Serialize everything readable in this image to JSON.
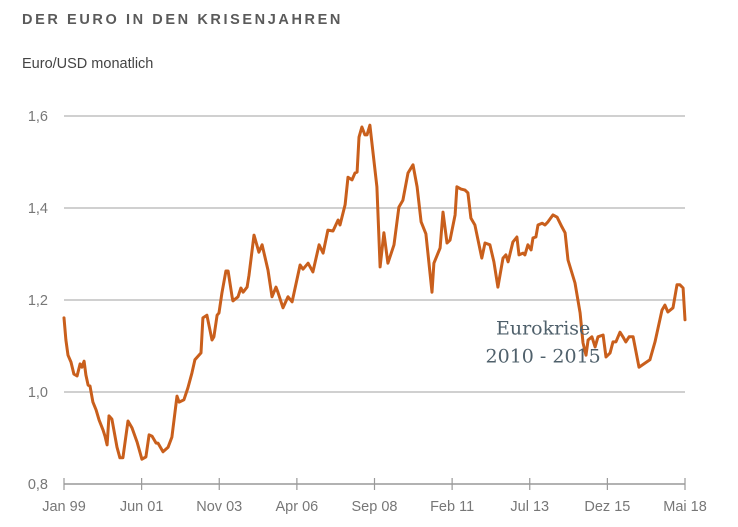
{
  "title": "DER EURO IN DEN KRISENJAHREN",
  "subtitle": "Euro/USD monatlich",
  "colors": {
    "line": "#c95f1c",
    "grid": "#b5b5b5",
    "axis": "#999999",
    "text": "#777777",
    "annotation": "#4f606b"
  },
  "chart_data": {
    "type": "line",
    "title": "DER EURO IN DEN KRISENJAHREN",
    "ylabel": "Euro/USD monatlich",
    "xlabel": "",
    "x_unit": "months since Jan 1999",
    "xlim": [
      0,
      232
    ],
    "ylim": [
      0.8,
      1.6
    ],
    "yticks": [
      0.8,
      1.0,
      1.2,
      1.4,
      1.6
    ],
    "ytick_labels": [
      "0,8",
      "1,0",
      "1,2",
      "1,4",
      "1,6"
    ],
    "xticks": [
      0,
      29,
      58,
      87,
      116,
      145,
      174,
      203,
      232
    ],
    "xtick_labels": [
      "Jan 99",
      "Jun 01",
      "Nov 03",
      "Apr 06",
      "Sep 08",
      "Feb 11",
      "Jul 13",
      "Dez 15",
      "Mai 18"
    ],
    "grid": true,
    "annotations": [
      {
        "line1": "Eurokrise",
        "line2": "2010 - 2015",
        "x": 179,
        "y": 1.06
      }
    ],
    "series": [
      {
        "name": "EUR/USD",
        "points": [
          [
            0,
            1.161
          ],
          [
            0.7,
            1.113
          ],
          [
            1.5,
            1.08
          ],
          [
            2.6,
            1.065
          ],
          [
            3.7,
            1.039
          ],
          [
            4.9,
            1.035
          ],
          [
            6.0,
            1.061
          ],
          [
            6.7,
            1.054
          ],
          [
            7.5,
            1.067
          ],
          [
            8.2,
            1.037
          ],
          [
            9.0,
            1.015
          ],
          [
            9.7,
            1.013
          ],
          [
            10.8,
            0.978
          ],
          [
            12.0,
            0.961
          ],
          [
            13.1,
            0.939
          ],
          [
            14.6,
            0.917
          ],
          [
            15.3,
            0.904
          ],
          [
            16.1,
            0.885
          ],
          [
            16.8,
            0.948
          ],
          [
            17.9,
            0.941
          ],
          [
            19.8,
            0.88
          ],
          [
            20.9,
            0.857
          ],
          [
            22.0,
            0.857
          ],
          [
            23.9,
            0.937
          ],
          [
            25.4,
            0.922
          ],
          [
            27.3,
            0.891
          ],
          [
            29.1,
            0.854
          ],
          [
            30.6,
            0.859
          ],
          [
            31.8,
            0.907
          ],
          [
            32.9,
            0.904
          ],
          [
            34.4,
            0.889
          ],
          [
            35.1,
            0.889
          ],
          [
            37.0,
            0.87
          ],
          [
            38.9,
            0.88
          ],
          [
            40.3,
            0.902
          ],
          [
            42.2,
            0.991
          ],
          [
            43.0,
            0.978
          ],
          [
            44.8,
            0.983
          ],
          [
            46.3,
            1.009
          ],
          [
            47.8,
            1.041
          ],
          [
            48.9,
            1.07
          ],
          [
            51.2,
            1.085
          ],
          [
            51.9,
            1.161
          ],
          [
            53.4,
            1.167
          ],
          [
            55.3,
            1.113
          ],
          [
            56.0,
            1.12
          ],
          [
            57.2,
            1.167
          ],
          [
            57.9,
            1.172
          ],
          [
            59.0,
            1.215
          ],
          [
            60.5,
            1.263
          ],
          [
            61.3,
            1.263
          ],
          [
            62.8,
            1.207
          ],
          [
            63.1,
            1.198
          ],
          [
            65.0,
            1.207
          ],
          [
            66.1,
            1.226
          ],
          [
            66.9,
            1.217
          ],
          [
            68.4,
            1.228
          ],
          [
            69.1,
            1.254
          ],
          [
            71.0,
            1.341
          ],
          [
            72.8,
            1.304
          ],
          [
            74.0,
            1.32
          ],
          [
            76.2,
            1.265
          ],
          [
            77.7,
            1.207
          ],
          [
            79.2,
            1.228
          ],
          [
            79.9,
            1.217
          ],
          [
            81.8,
            1.183
          ],
          [
            83.7,
            1.207
          ],
          [
            85.2,
            1.196
          ],
          [
            88.2,
            1.276
          ],
          [
            89.3,
            1.267
          ],
          [
            91.2,
            1.28
          ],
          [
            93.0,
            1.261
          ],
          [
            95.3,
            1.32
          ],
          [
            96.8,
            1.302
          ],
          [
            98.6,
            1.352
          ],
          [
            100.5,
            1.35
          ],
          [
            102.4,
            1.374
          ],
          [
            103.1,
            1.363
          ],
          [
            105.0,
            1.407
          ],
          [
            106.1,
            1.467
          ],
          [
            107.6,
            1.461
          ],
          [
            108.7,
            1.476
          ],
          [
            109.5,
            1.478
          ],
          [
            110.2,
            1.554
          ],
          [
            111.3,
            1.576
          ],
          [
            112.4,
            1.559
          ],
          [
            113.2,
            1.559
          ],
          [
            114.3,
            1.58
          ],
          [
            116.9,
            1.446
          ],
          [
            118.1,
            1.272
          ],
          [
            119.5,
            1.346
          ],
          [
            121.0,
            1.28
          ],
          [
            123.3,
            1.32
          ],
          [
            125.1,
            1.402
          ],
          [
            126.6,
            1.417
          ],
          [
            128.5,
            1.476
          ],
          [
            130.4,
            1.494
          ],
          [
            131.9,
            1.446
          ],
          [
            133.4,
            1.37
          ],
          [
            135.2,
            1.344
          ],
          [
            137.5,
            1.217
          ],
          [
            138.2,
            1.28
          ],
          [
            140.5,
            1.313
          ],
          [
            141.6,
            1.391
          ],
          [
            143.1,
            1.324
          ],
          [
            144.2,
            1.33
          ],
          [
            146.1,
            1.385
          ],
          [
            146.8,
            1.446
          ],
          [
            148.3,
            1.441
          ],
          [
            149.8,
            1.439
          ],
          [
            150.9,
            1.433
          ],
          [
            152.0,
            1.378
          ],
          [
            153.5,
            1.363
          ],
          [
            156.1,
            1.291
          ],
          [
            157.3,
            1.324
          ],
          [
            159.1,
            1.32
          ],
          [
            160.6,
            1.283
          ],
          [
            162.1,
            1.228
          ],
          [
            164.0,
            1.291
          ],
          [
            165.1,
            1.298
          ],
          [
            165.9,
            1.283
          ],
          [
            167.7,
            1.326
          ],
          [
            169.2,
            1.337
          ],
          [
            170.0,
            1.298
          ],
          [
            171.5,
            1.302
          ],
          [
            172.2,
            1.298
          ],
          [
            173.3,
            1.32
          ],
          [
            174.5,
            1.309
          ],
          [
            175.2,
            1.335
          ],
          [
            176.3,
            1.337
          ],
          [
            177.1,
            1.363
          ],
          [
            178.6,
            1.367
          ],
          [
            179.7,
            1.363
          ],
          [
            180.8,
            1.37
          ],
          [
            182.7,
            1.385
          ],
          [
            184.2,
            1.38
          ],
          [
            186.0,
            1.359
          ],
          [
            187.2,
            1.346
          ],
          [
            188.3,
            1.287
          ],
          [
            190.9,
            1.237
          ],
          [
            192.8,
            1.172
          ],
          [
            193.9,
            1.107
          ],
          [
            195.0,
            1.08
          ],
          [
            195.8,
            1.113
          ],
          [
            197.2,
            1.12
          ],
          [
            198.4,
            1.098
          ],
          [
            199.5,
            1.12
          ],
          [
            201.4,
            1.124
          ],
          [
            202.5,
            1.076
          ],
          [
            204.0,
            1.085
          ],
          [
            205.1,
            1.109
          ],
          [
            206.2,
            1.109
          ],
          [
            207.7,
            1.13
          ],
          [
            208.8,
            1.12
          ],
          [
            209.9,
            1.109
          ],
          [
            211.1,
            1.12
          ],
          [
            212.6,
            1.12
          ],
          [
            214.8,
            1.054
          ],
          [
            218.9,
            1.07
          ],
          [
            220.8,
            1.109
          ],
          [
            223.4,
            1.178
          ],
          [
            224.5,
            1.189
          ],
          [
            225.6,
            1.174
          ],
          [
            227.5,
            1.183
          ],
          [
            229.0,
            1.233
          ],
          [
            230.1,
            1.233
          ],
          [
            231.3,
            1.226
          ],
          [
            232.0,
            1.157
          ]
        ]
      }
    ]
  }
}
